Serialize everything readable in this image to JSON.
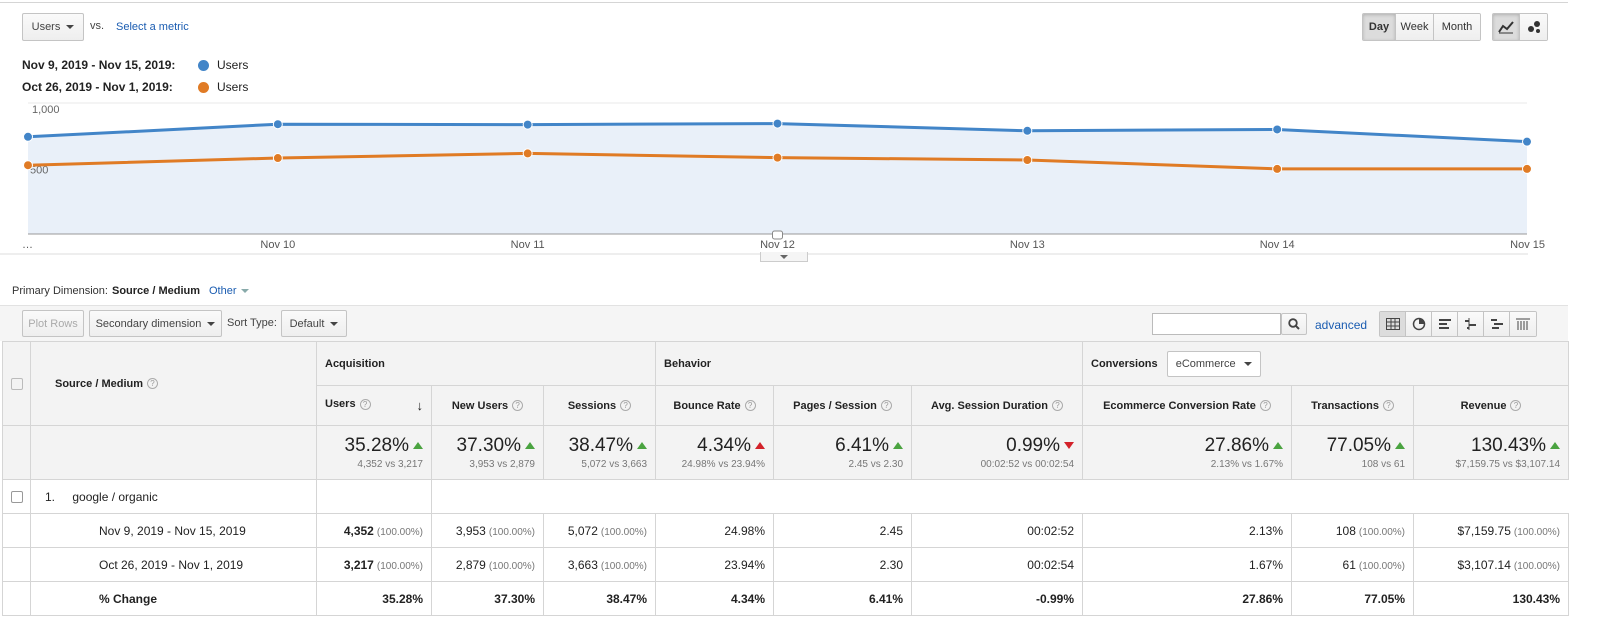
{
  "top": {
    "metric_select": "Users",
    "vs_label": "vs.",
    "select_metric_link": "Select a metric",
    "period_buttons": [
      "Day",
      "Week",
      "Month"
    ],
    "active_period": "Day"
  },
  "legend": [
    {
      "range": "Nov 9, 2019 - Nov 15, 2019:",
      "metric": "Users",
      "color": "#4285c8"
    },
    {
      "range": "Oct 26, 2019 - Nov 1, 2019:",
      "metric": "Users",
      "color": "#e07b25"
    }
  ],
  "chart_data": {
    "type": "line",
    "x": [
      "…",
      "Nov 10",
      "Nov 11",
      "Nov 12",
      "Nov 13",
      "Nov 14",
      "Nov 15"
    ],
    "ylim": [
      0,
      1000
    ],
    "yticks": [
      "1,000",
      "500"
    ],
    "series": [
      {
        "name": "Users",
        "values": [
          742,
          838,
          835,
          843,
          788,
          798,
          705
        ],
        "color": "#4285c8",
        "fill": true
      },
      {
        "name": "Users",
        "values": [
          525,
          580,
          615,
          583,
          565,
          497,
          497
        ],
        "color": "#e07b25",
        "fill": false
      }
    ]
  },
  "dimension_bar": {
    "label": "Primary Dimension:",
    "active": "Source / Medium",
    "other": "Other"
  },
  "toolbar": {
    "plot_rows": "Plot Rows",
    "secondary_dimension": "Secondary dimension",
    "sort_type_label": "Sort Type:",
    "sort_default": "Default",
    "advanced": "advanced",
    "search_value": ""
  },
  "table": {
    "dimension_header": "Source / Medium",
    "groups": {
      "acquisition": "Acquisition",
      "behavior": "Behavior",
      "conversions": "Conversions",
      "conversions_select": "eCommerce"
    },
    "columns": [
      "Users",
      "New Users",
      "Sessions",
      "Bounce Rate",
      "Pages / Session",
      "Avg. Session Duration",
      "Ecommerce Conversion Rate",
      "Transactions",
      "Revenue"
    ],
    "summary": [
      {
        "value": "35.28%",
        "dir": "up",
        "sub": "4,352 vs 3,217"
      },
      {
        "value": "37.30%",
        "dir": "up",
        "sub": "3,953 vs 2,879"
      },
      {
        "value": "38.47%",
        "dir": "up",
        "sub": "5,072 vs 3,663"
      },
      {
        "value": "4.34%",
        "dir": "up-red",
        "sub": "24.98% vs 23.94%"
      },
      {
        "value": "6.41%",
        "dir": "up",
        "sub": "2.45 vs 2.30"
      },
      {
        "value": "0.99%",
        "dir": "down",
        "sub": "00:02:52 vs 00:02:54"
      },
      {
        "value": "27.86%",
        "dir": "up",
        "sub": "2.13% vs 1.67%"
      },
      {
        "value": "77.05%",
        "dir": "up",
        "sub": "108 vs 61"
      },
      {
        "value": "130.43%",
        "dir": "up",
        "sub": "$7,159.75 vs $3,107.14"
      }
    ],
    "row": {
      "index": "1.",
      "name": "google / organic"
    },
    "periods": [
      {
        "label": "Nov 9, 2019 - Nov 15, 2019",
        "cells": [
          {
            "v": "4,352",
            "p": "(100.00%)",
            "bold": true
          },
          {
            "v": "3,953",
            "p": "(100.00%)"
          },
          {
            "v": "5,072",
            "p": "(100.00%)"
          },
          {
            "v": "24.98%",
            "p": ""
          },
          {
            "v": "2.45",
            "p": ""
          },
          {
            "v": "00:02:52",
            "p": ""
          },
          {
            "v": "2.13%",
            "p": ""
          },
          {
            "v": "108",
            "p": "(100.00%)"
          },
          {
            "v": "$7,159.75",
            "p": "(100.00%)"
          }
        ]
      },
      {
        "label": "Oct 26, 2019 - Nov 1, 2019",
        "cells": [
          {
            "v": "3,217",
            "p": "(100.00%)",
            "bold": true
          },
          {
            "v": "2,879",
            "p": "(100.00%)"
          },
          {
            "v": "3,663",
            "p": "(100.00%)"
          },
          {
            "v": "23.94%",
            "p": ""
          },
          {
            "v": "2.30",
            "p": ""
          },
          {
            "v": "00:02:54",
            "p": ""
          },
          {
            "v": "1.67%",
            "p": ""
          },
          {
            "v": "61",
            "p": "(100.00%)"
          },
          {
            "v": "$3,107.14",
            "p": "(100.00%)"
          }
        ]
      }
    ],
    "change": {
      "label": "% Change",
      "values": [
        "35.28%",
        "37.30%",
        "38.47%",
        "4.34%",
        "6.41%",
        "-0.99%",
        "27.86%",
        "77.05%",
        "130.43%"
      ]
    }
  }
}
